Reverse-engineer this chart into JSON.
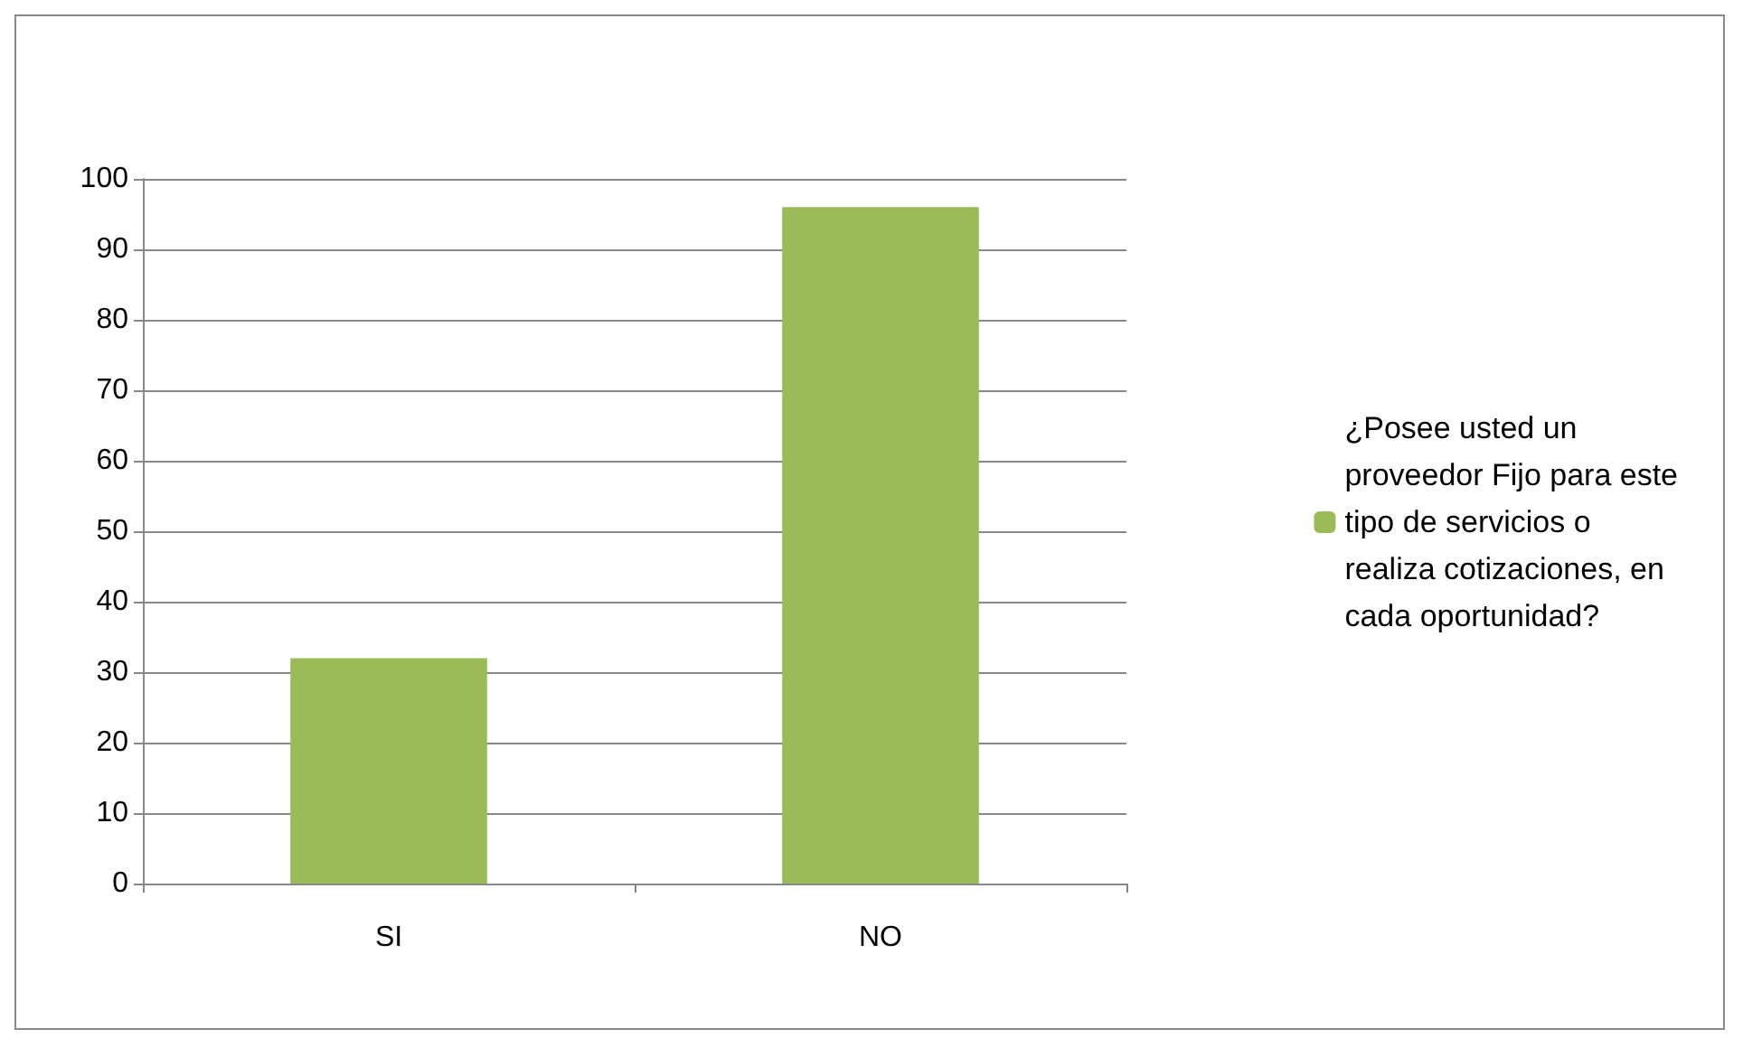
{
  "chart_data": {
    "type": "bar",
    "categories": [
      "SI",
      "NO"
    ],
    "series": [
      {
        "name": "¿Posee usted un proveedor Fijo para este tipo de servicios o realiza cotizaciones, en cada oportunidad?",
        "color": "#9bbb59",
        "values": [
          32,
          96
        ]
      }
    ],
    "ylim": [
      0,
      100
    ],
    "yticks": [
      0,
      10,
      20,
      30,
      40,
      50,
      60,
      70,
      80,
      90,
      100
    ],
    "grid": "y",
    "legend": "right"
  }
}
